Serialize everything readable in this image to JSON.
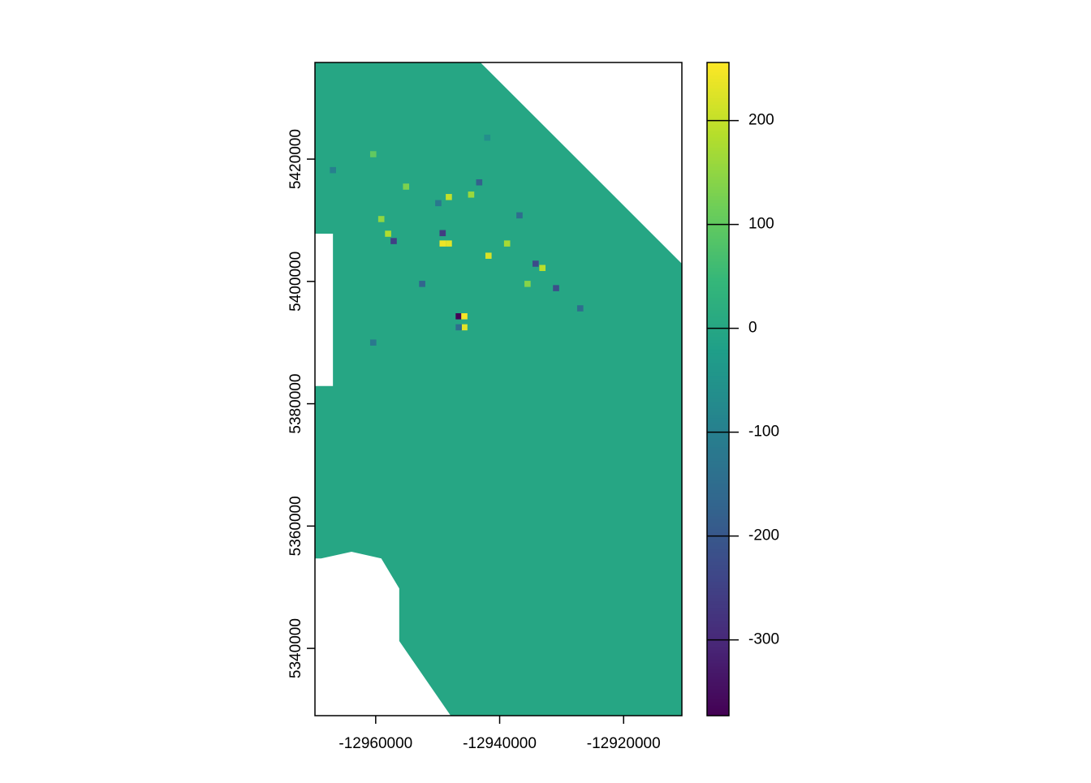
{
  "chart_data": {
    "type": "raster",
    "xlim": [
      -12969800,
      -12910600
    ],
    "ylim": [
      5329000,
      5435800
    ],
    "xticks": [
      -12960000,
      -12940000,
      -12920000
    ],
    "yticks": [
      5340000,
      5360000,
      5380000,
      5400000,
      5420000
    ],
    "zlim": [
      -373,
      256
    ],
    "zticks": [
      -300,
      -200,
      -100,
      0,
      100,
      200
    ],
    "colors": [
      "#440154",
      "#482878",
      "#3e4989",
      "#31688e",
      "#26828e",
      "#1f9e89",
      "#35b779",
      "#6ece58",
      "#b5de2b",
      "#fde725"
    ],
    "base_value": 0,
    "region": {
      "x": [
        -12969800,
        -12943100,
        -12910600,
        -12910600,
        -12947900,
        -12956200,
        -12956200,
        -12959100,
        -12963900,
        -12968800,
        -12969800,
        -12969800,
        -12966900,
        -12966900,
        -12969800
      ],
      "y": [
        5435800,
        5435800,
        5402900,
        5329000,
        5329000,
        5341200,
        5349800,
        5354700,
        5355800,
        5354700,
        5354700,
        5382900,
        5382900,
        5407800,
        5407800
      ]
    },
    "cells": [
      {
        "x": -12946600,
        "y": 5394300,
        "value": -370
      },
      {
        "x": -12945700,
        "y": 5394300,
        "value": 250
      },
      {
        "x": -12945700,
        "y": 5392500,
        "value": 230
      },
      {
        "x": -12946600,
        "y": 5392500,
        "value": -150
      },
      {
        "x": -12949200,
        "y": 5406200,
        "value": 240
      },
      {
        "x": -12948200,
        "y": 5406200,
        "value": 230
      },
      {
        "x": -12941800,
        "y": 5404200,
        "value": 220
      },
      {
        "x": -12957100,
        "y": 5406600,
        "value": -250
      },
      {
        "x": -12958000,
        "y": 5407800,
        "value": 180
      },
      {
        "x": -12949200,
        "y": 5407900,
        "value": -260
      },
      {
        "x": -12934200,
        "y": 5402900,
        "value": -230
      },
      {
        "x": -12933100,
        "y": 5402200,
        "value": 190
      },
      {
        "x": -12930900,
        "y": 5398900,
        "value": -220
      },
      {
        "x": -12927000,
        "y": 5395600,
        "value": -150
      },
      {
        "x": -12960400,
        "y": 5390000,
        "value": -120
      },
      {
        "x": -12959100,
        "y": 5410200,
        "value": 150
      },
      {
        "x": -12952500,
        "y": 5399600,
        "value": -170
      },
      {
        "x": -12944600,
        "y": 5414200,
        "value": 160
      },
      {
        "x": -12943300,
        "y": 5416200,
        "value": -180
      },
      {
        "x": -12938800,
        "y": 5406200,
        "value": 170
      },
      {
        "x": -12936800,
        "y": 5410800,
        "value": -150
      },
      {
        "x": -12955100,
        "y": 5415500,
        "value": 130
      },
      {
        "x": -12966900,
        "y": 5418200,
        "value": -100
      },
      {
        "x": -12960400,
        "y": 5420800,
        "value": 100
      },
      {
        "x": -12942000,
        "y": 5423500,
        "value": -60
      },
      {
        "x": -12935500,
        "y": 5399600,
        "value": 140
      },
      {
        "x": -12949900,
        "y": 5412800,
        "value": -120
      },
      {
        "x": -12948200,
        "y": 5413800,
        "value": 200
      }
    ]
  }
}
